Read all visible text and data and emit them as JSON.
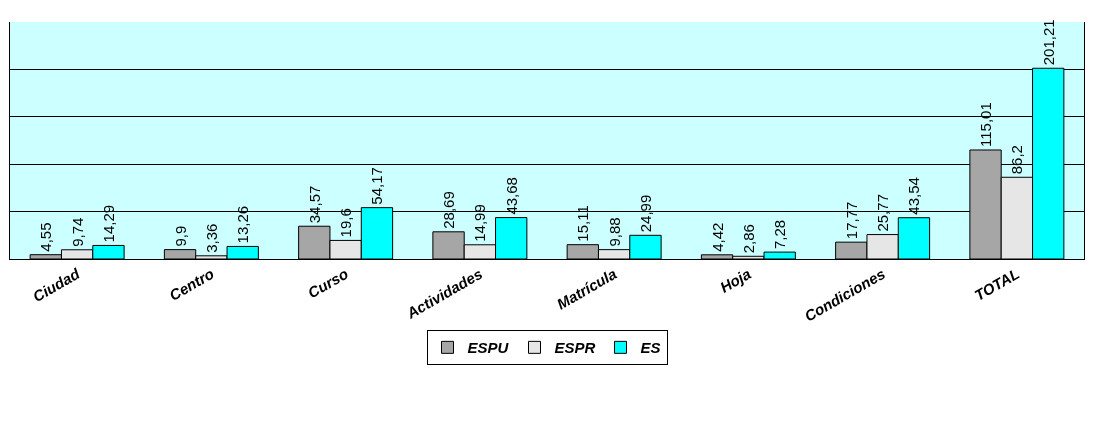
{
  "chart_data": {
    "type": "bar",
    "categories": [
      "Ciudad",
      "Centro",
      "Curso",
      "Actividades",
      "Matrícula",
      "Hoja",
      "Condiciones",
      "TOTAL"
    ],
    "series": [
      {
        "name": "ESPU",
        "color": "#a6a6a6",
        "values": [
          4.55,
          9.9,
          34.57,
          28.69,
          15.11,
          4.42,
          17.77,
          115.01
        ],
        "value_labels": [
          "4,55",
          "9,9",
          "34,57",
          "28,69",
          "15,11",
          "4,42",
          "17,77",
          "115,01"
        ]
      },
      {
        "name": "ESPR",
        "color": "#e6e6e6",
        "values": [
          9.74,
          3.36,
          19.6,
          14.99,
          9.88,
          2.86,
          25.77,
          86.2
        ],
        "value_labels": [
          "9,74",
          "3,36",
          "19,6",
          "14,99",
          "9,88",
          "2,86",
          "25,77",
          "86,2"
        ]
      },
      {
        "name": "ES",
        "color": "#00ffff",
        "values": [
          14.29,
          13.26,
          54.17,
          43.68,
          24.99,
          7.28,
          43.54,
          201.21
        ],
        "value_labels": [
          "14,29",
          "13,26",
          "54,17",
          "43,68",
          "24,99",
          "7,28",
          "43,54",
          "201,21"
        ]
      }
    ],
    "ylim": [
      0,
      250
    ],
    "yticks": [
      {
        "value": 0,
        "label": null
      },
      {
        "value": 50,
        "label": null
      },
      {
        "value": 100,
        "label": null
      },
      {
        "value": 150,
        "label": null
      },
      {
        "value": 200,
        "label": null
      },
      {
        "value": 250,
        "label": null
      }
    ],
    "grid": "y",
    "legend": "bottom",
    "tick_labels": "x"
  }
}
